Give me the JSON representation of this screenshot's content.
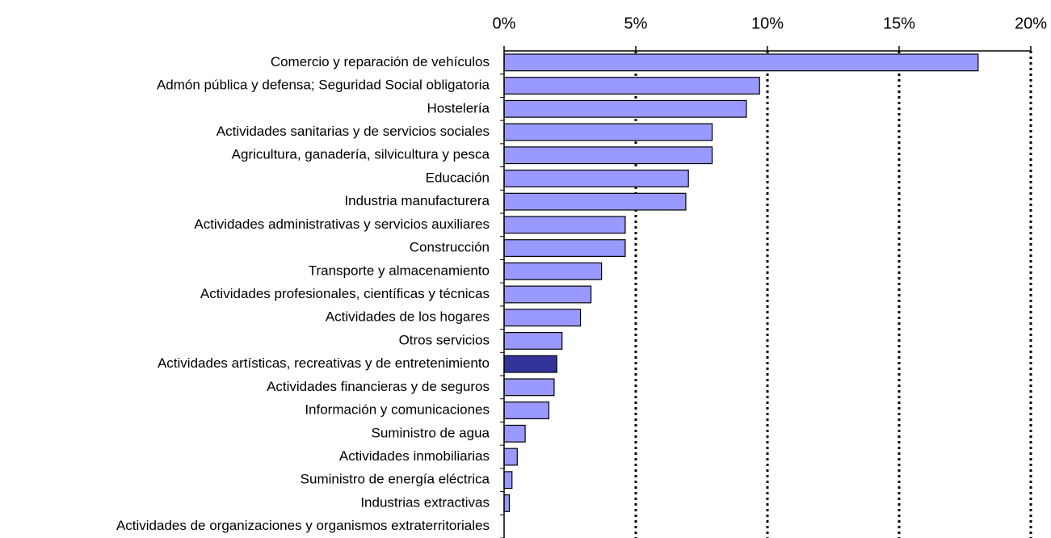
{
  "chart_data": {
    "type": "hbar",
    "categories": [
      "Comercio y reparación de vehículos",
      "Admón pública y defensa; Seguridad Social obligatoria",
      "Hostelería",
      "Actividades sanitarias y de servicios sociales",
      "Agricultura, ganadería, silvicultura y pesca",
      "Educación",
      "Industria manufacturera",
      "Actividades administrativas y servicios auxiliares",
      "Construcción",
      "Transporte y almacenamiento",
      "Actividades profesionales, científicas y técnicas",
      "Actividades de los hogares",
      "Otros servicios",
      "Actividades artísticas, recreativas y de entretenimiento",
      "Actividades financieras y de seguros",
      "Información y comunicaciones",
      "Suministro de agua",
      "Actividades inmobiliarias",
      "Suministro de energía eléctrica",
      "Industrias extractivas",
      "Actividades de organizaciones y organismos extraterritoriales"
    ],
    "values": [
      18.0,
      9.7,
      9.2,
      7.9,
      7.9,
      7.0,
      6.9,
      4.6,
      4.6,
      3.7,
      3.3,
      2.9,
      2.2,
      2.0,
      1.9,
      1.7,
      0.8,
      0.5,
      0.3,
      0.2,
      0
    ],
    "colors": [
      "#9999ff",
      "#9999ff",
      "#9999ff",
      "#9999ff",
      "#9999ff",
      "#9999ff",
      "#9999ff",
      "#9999ff",
      "#9999ff",
      "#9999ff",
      "#9999ff",
      "#9999ff",
      "#9999ff",
      "#333399",
      "#9999ff",
      "#9999ff",
      "#9999ff",
      "#9999ff",
      "#9999ff",
      "#9999ff",
      "#9999ff"
    ],
    "xlim": [
      0,
      20
    ],
    "xticks": [
      {
        "value": 0,
        "label": "0%"
      },
      {
        "value": 5,
        "label": "5%"
      },
      {
        "value": 10,
        "label": "10%"
      },
      {
        "value": 15,
        "label": "15%"
      },
      {
        "value": 20,
        "label": "20%"
      }
    ],
    "grid": true
  }
}
